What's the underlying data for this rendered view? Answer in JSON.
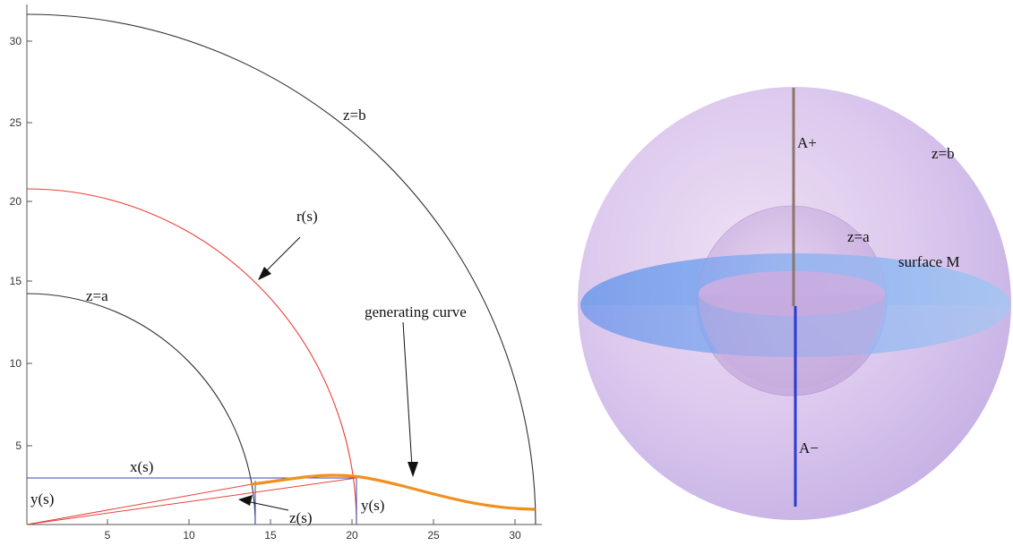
{
  "figure": {
    "left_panel": {
      "axis": {
        "x_ticks": [
          "5",
          "10",
          "15",
          "20",
          "25",
          "30"
        ],
        "y_ticks": [
          "5",
          "10",
          "15",
          "20",
          "25",
          "30"
        ]
      },
      "labels": {
        "arc_outer": "z=b",
        "arc_mid": "r(s)",
        "arc_inner": "z=a",
        "generating_curve": "generating curve",
        "x_s": "x(s)",
        "y_s_left": "y(s)",
        "y_s_right": "y(s)",
        "z_s": "z(s)"
      },
      "colors": {
        "outer_arc": "#333333",
        "radius_arc": "#e8413c",
        "inner_arc": "#333333",
        "blue_lines": "#3548b5",
        "curve": "#f0901e"
      }
    },
    "right_panel": {
      "labels": {
        "a_plus": "A+",
        "z_b": "z=b",
        "z_a": "z=a",
        "surface_m": "surface M",
        "a_minus": "A−"
      },
      "colors": {
        "outer_sphere": "#c9b2e6",
        "inner_sphere": "#b49ad8",
        "disk": "#8bb2ef",
        "axis_upper": "#8c7668",
        "axis_lower": "#2a3bd1"
      }
    }
  }
}
